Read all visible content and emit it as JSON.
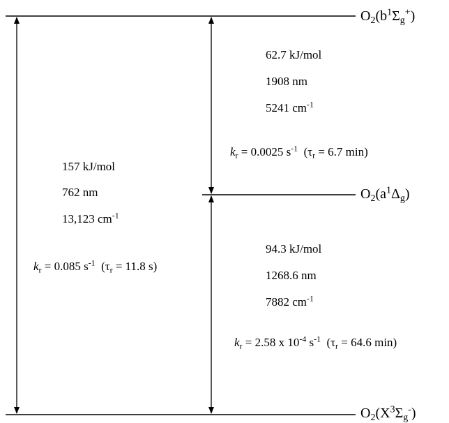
{
  "states": {
    "b": {
      "mol": "O",
      "mol_sub": "2",
      "open": "(b",
      "mult": "1",
      "term": "Σ",
      "term_sub": "g",
      "term_sup": "+",
      "close": ")"
    },
    "a": {
      "mol": "O",
      "mol_sub": "2",
      "open": "(a",
      "mult": "1",
      "term": "Δ",
      "term_sub": "g",
      "close": ")"
    },
    "x": {
      "mol": "O",
      "mol_sub": "2",
      "open": "(X",
      "mult": "3",
      "term": "Σ",
      "term_sub": "g",
      "term_sup": "-",
      "close": ")"
    }
  },
  "transitions": {
    "x_to_b": {
      "energy": "157 kJ/mol",
      "wavelength": "762 nm",
      "wavenumber_value": "13,123 cm",
      "wavenumber_exp": "-1",
      "k_symbol": "k",
      "k_sub": "r",
      "k_value": " = 0.085 s",
      "k_exp": "-1",
      "tau_open": "  (τ",
      "tau_sub": "r",
      "tau_value": " = 11.8 s)"
    },
    "a_to_b": {
      "energy": "62.7 kJ/mol",
      "wavelength": "1908 nm",
      "wavenumber_value": "5241 cm",
      "wavenumber_exp": "-1",
      "k_symbol": "k",
      "k_sub": "r",
      "k_value": " = 0.0025 s",
      "k_exp": "-1",
      "tau_open": "  (τ",
      "tau_sub": "r",
      "tau_value": " = 6.7 min)"
    },
    "x_to_a": {
      "energy": "94.3 kJ/mol",
      "wavelength": "1268.6 nm",
      "wavenumber_value": "7882 cm",
      "wavenumber_exp": "-1",
      "k_symbol": "k",
      "k_sub": "r",
      "k_value": " = 2.58 x 10",
      "k_exp": "-4",
      "k_unit": " s",
      "k_unit_exp": "-1",
      "tau_open": "  (τ",
      "tau_sub": "r",
      "tau_value": " = 64.6 min)"
    }
  }
}
